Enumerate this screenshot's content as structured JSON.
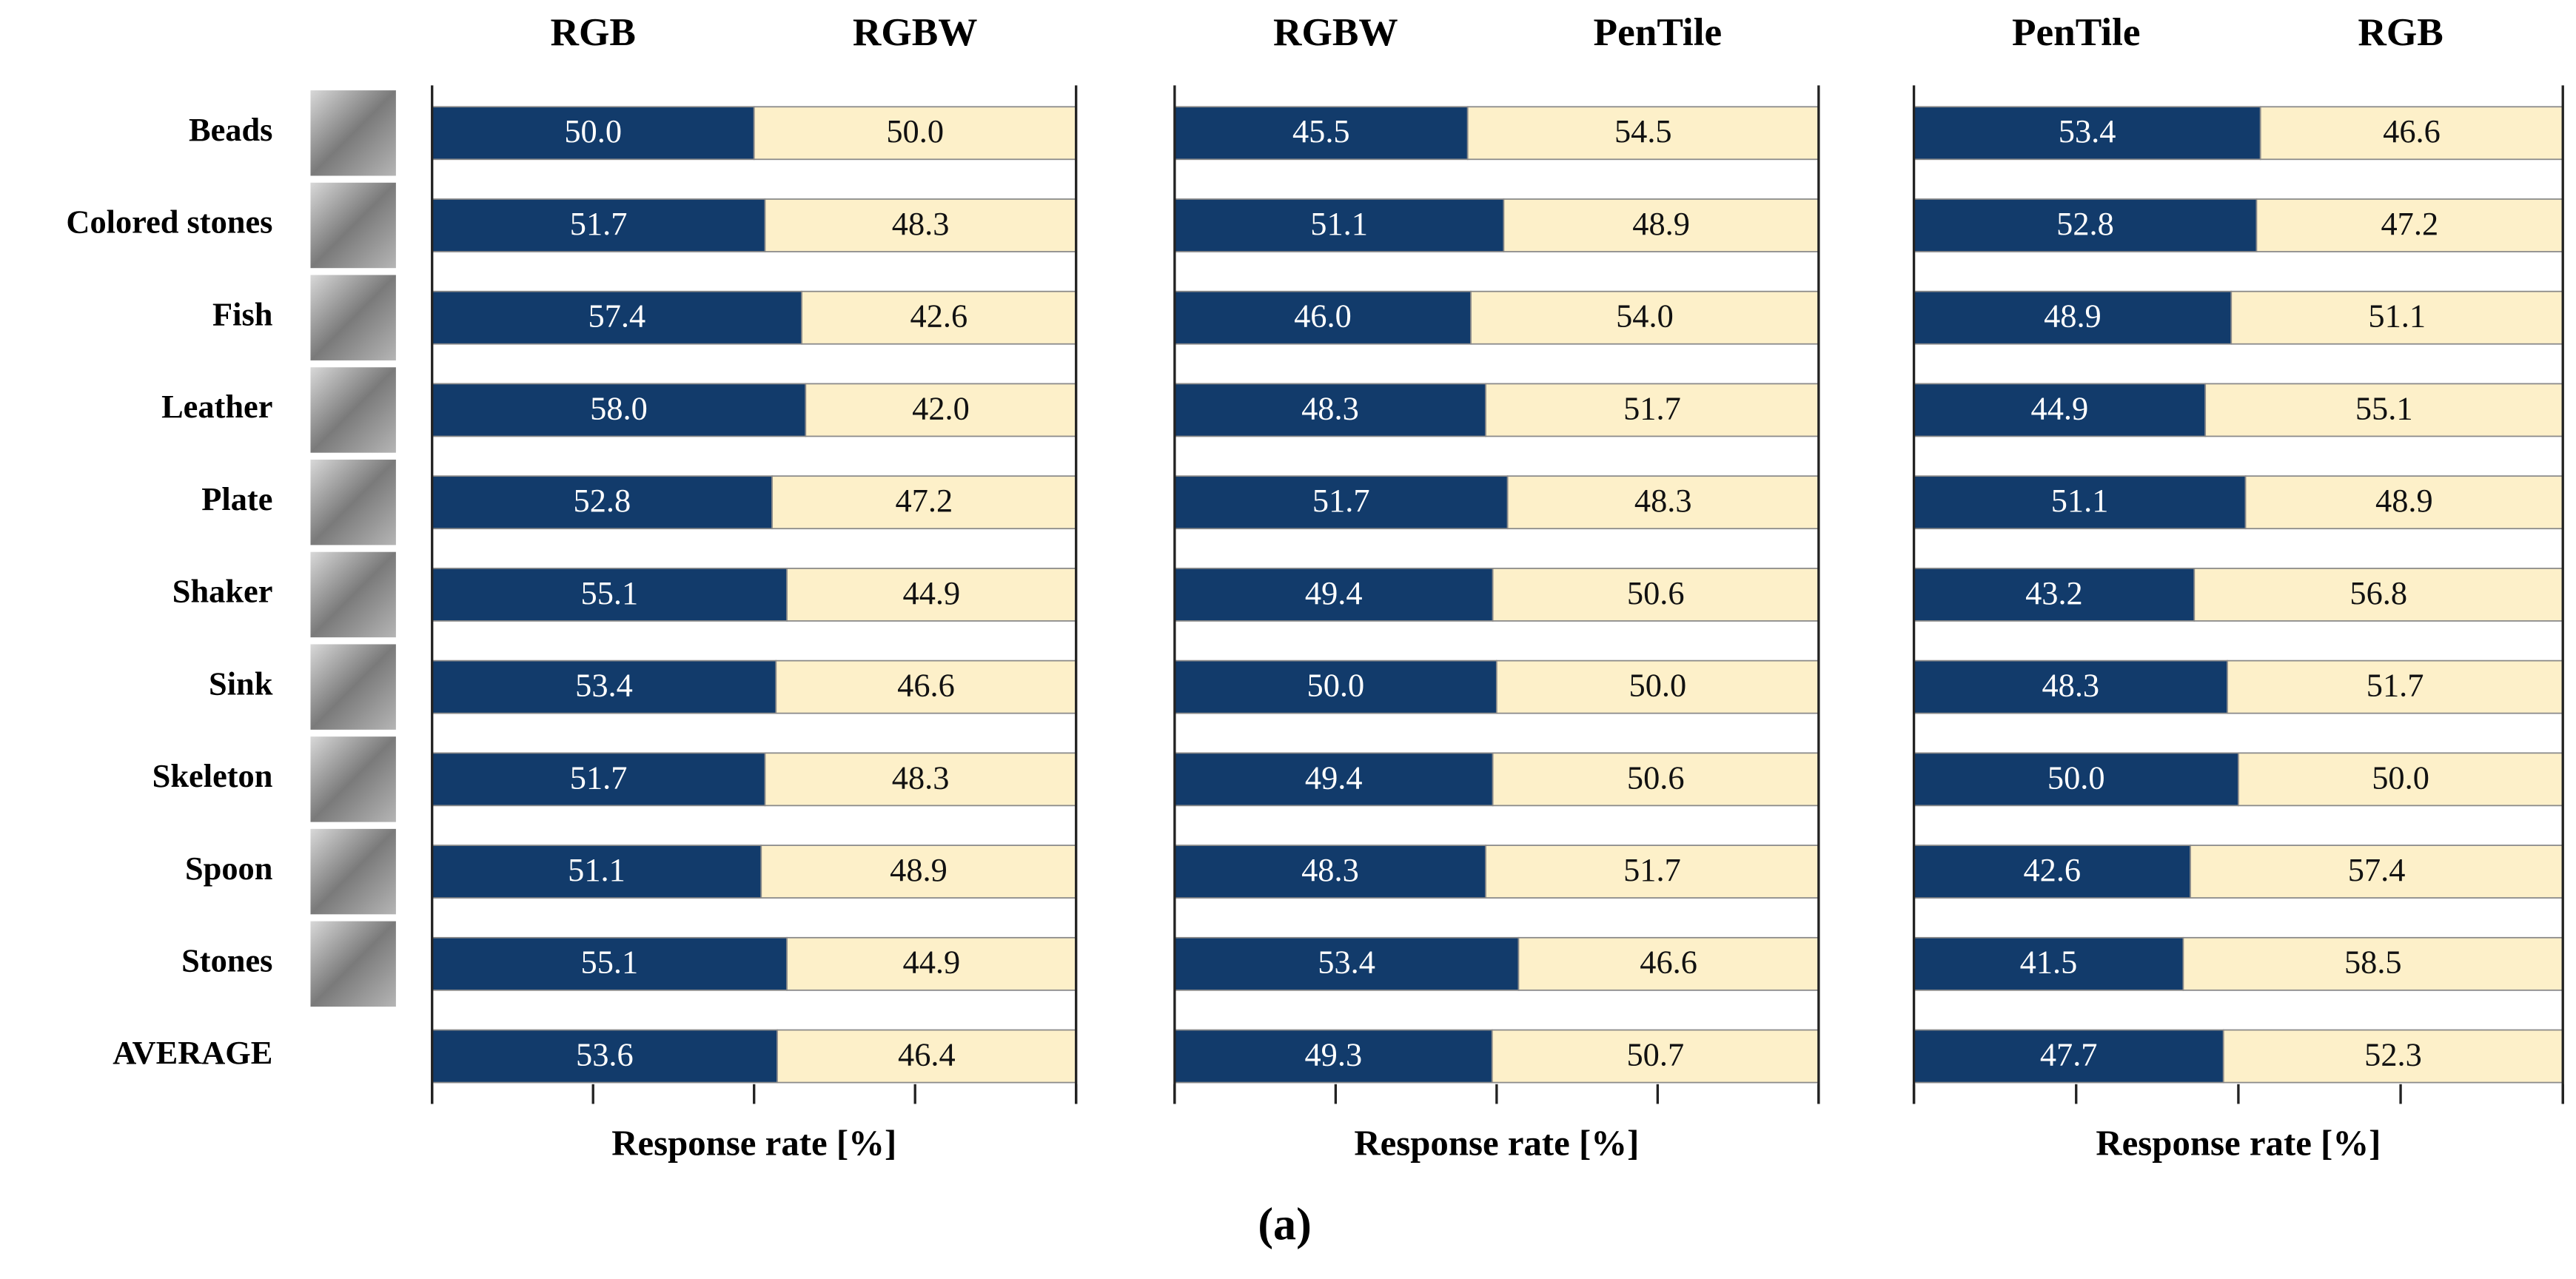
{
  "chart_data": [
    {
      "type": "bar",
      "orientation": "horizontal",
      "stacked": true,
      "categories": [
        "Beads",
        "Colored stones",
        "Fish",
        "Leather",
        "Plate",
        "Shaker",
        "Sink",
        "Skeleton",
        "Spoon",
        "Stones",
        "AVERAGE"
      ],
      "series": [
        {
          "name": "RGB",
          "color": "#123b6b",
          "values": [
            50.0,
            51.7,
            57.4,
            58.0,
            52.8,
            55.1,
            53.4,
            51.7,
            51.1,
            55.1,
            53.6
          ],
          "value_labels": [
            "50.0",
            "51.7",
            "57.4",
            "58.0",
            "52.8",
            "55.1",
            "53.4",
            "51.7",
            "51.1",
            "55.1",
            "53.6"
          ]
        },
        {
          "name": "RGBW",
          "color": "#fdf0c9",
          "values": [
            50.0,
            48.3,
            42.6,
            42.0,
            47.2,
            44.9,
            46.6,
            48.3,
            48.9,
            44.9,
            46.4
          ],
          "value_labels": [
            "50.0",
            "48.3",
            "42.6",
            "42.0",
            "47.2",
            "44.9",
            "46.6",
            "48.3",
            "48.9",
            "44.9",
            "46.4"
          ]
        }
      ],
      "xlabel": "Response rate [%]",
      "xlim": [
        0,
        100
      ],
      "xticks": [
        0,
        25,
        50,
        75,
        100
      ]
    },
    {
      "type": "bar",
      "orientation": "horizontal",
      "stacked": true,
      "series": [
        {
          "name": "RGBW",
          "color": "#123b6b",
          "values": [
            45.5,
            51.1,
            46.0,
            48.3,
            51.7,
            49.4,
            50.0,
            49.4,
            48.3,
            53.4,
            49.3
          ],
          "value_labels": [
            "45.5",
            "51.1",
            "46.0",
            "48.3",
            "51.7",
            "49.4",
            "50.0",
            "49.4",
            "48.3",
            "53.4",
            "49.3"
          ]
        },
        {
          "name": "PenTile",
          "color": "#fdf0c9",
          "values": [
            54.5,
            48.9,
            54.0,
            51.7,
            48.3,
            50.6,
            50.0,
            50.6,
            51.7,
            46.6,
            50.7
          ],
          "value_labels": [
            "54.5",
            "48.9",
            "54.0",
            "51.7",
            "48.3",
            "50.6",
            "50.0",
            "50.6",
            "51.7",
            "46.6",
            "50.7"
          ]
        }
      ],
      "xlabel": "Response rate [%]",
      "xlim": [
        0,
        100
      ],
      "xticks": [
        0,
        25,
        50,
        75,
        100
      ]
    },
    {
      "type": "bar",
      "orientation": "horizontal",
      "stacked": true,
      "series": [
        {
          "name": "PenTile",
          "color": "#123b6b",
          "values": [
            53.4,
            52.8,
            48.9,
            44.9,
            51.1,
            43.2,
            48.3,
            50.0,
            42.6,
            41.5,
            47.7
          ],
          "value_labels": [
            "53.4",
            "52.8",
            "48.9",
            "44.9",
            "51.1",
            "43.2",
            "48.3",
            "50.0",
            "42.6",
            "41.5",
            "47.7"
          ]
        },
        {
          "name": "RGB",
          "color": "#fdf0c9",
          "values": [
            46.6,
            47.2,
            51.1,
            55.1,
            48.9,
            56.8,
            51.7,
            50.0,
            57.4,
            58.5,
            52.3
          ],
          "value_labels": [
            "46.6",
            "47.2",
            "51.1",
            "55.1",
            "48.9",
            "56.8",
            "51.7",
            "50.0",
            "57.4",
            "58.5",
            "52.3"
          ]
        }
      ],
      "xlabel": "Response rate [%]",
      "xlim": [
        0,
        100
      ],
      "xticks": [
        0,
        25,
        50,
        75,
        100
      ]
    }
  ],
  "caption": "(a)"
}
